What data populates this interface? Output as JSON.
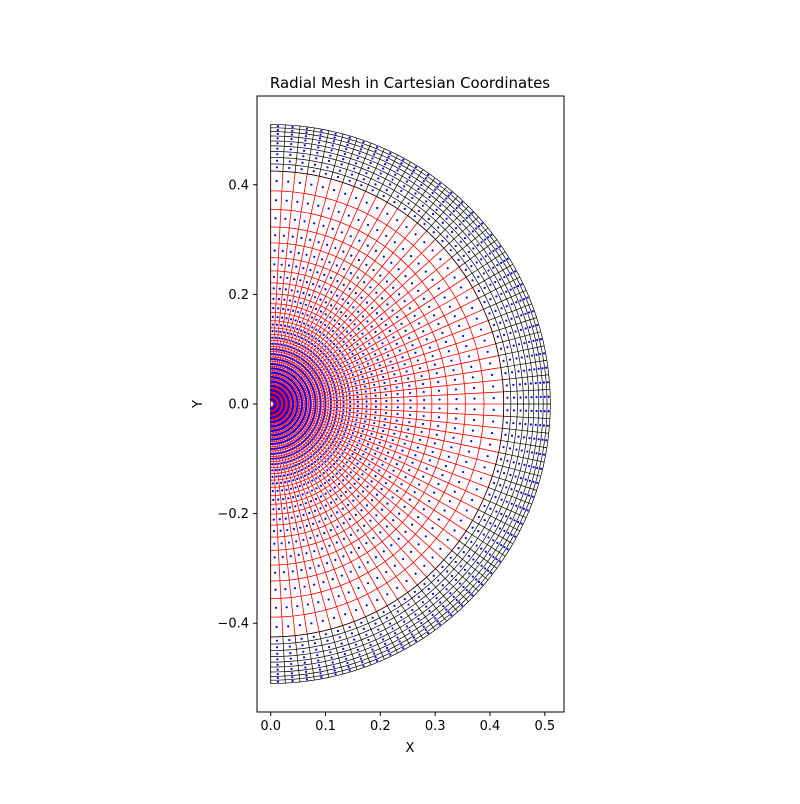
{
  "chart_data": {
    "type": "scatter",
    "title": "Radial Mesh in Cartesian Coordinates",
    "xlabel": "X",
    "ylabel": "Y",
    "xlim": [
      -0.025,
      0.535
    ],
    "ylim": [
      -0.562,
      0.562
    ],
    "x_ticks": [
      0.0,
      0.1,
      0.2,
      0.3,
      0.4,
      0.5
    ],
    "x_tick_labels": [
      "0.0",
      "0.1",
      "0.2",
      "0.3",
      "0.4",
      "0.5"
    ],
    "y_ticks": [
      -0.4,
      -0.2,
      0.0,
      0.2,
      0.4
    ],
    "y_tick_labels": [
      "−0.4",
      "−0.2",
      "0.0",
      "0.2",
      "0.4"
    ],
    "grid": false,
    "legend": "none",
    "mesh": {
      "theta_range_deg": [
        -90,
        90
      ],
      "n_spokes": 61,
      "red_radii": [
        0.005,
        0.013,
        0.021,
        0.029,
        0.037,
        0.045,
        0.053,
        0.061,
        0.069,
        0.078,
        0.086,
        0.096,
        0.105,
        0.116,
        0.127,
        0.139,
        0.152,
        0.167,
        0.183,
        0.201,
        0.221,
        0.243,
        0.267,
        0.294,
        0.323,
        0.355,
        0.389,
        0.425
      ],
      "black_radii": [
        0.425,
        0.438,
        0.45,
        0.461,
        0.471,
        0.48,
        0.489,
        0.497,
        0.504,
        0.51
      ],
      "point_radii": [
        0.009,
        0.017,
        0.025,
        0.033,
        0.041,
        0.049,
        0.057,
        0.065,
        0.073,
        0.082,
        0.091,
        0.1,
        0.11,
        0.121,
        0.133,
        0.145,
        0.159,
        0.175,
        0.192,
        0.211,
        0.232,
        0.255,
        0.28,
        0.308,
        0.339,
        0.372,
        0.407,
        0.432,
        0.444,
        0.456,
        0.466,
        0.476,
        0.485,
        0.493,
        0.5,
        0.507
      ]
    },
    "colors": {
      "red_mesh": "#ff0000",
      "black_mesh": "#000000",
      "points": "#0000ff",
      "axes": "#000000"
    }
  }
}
